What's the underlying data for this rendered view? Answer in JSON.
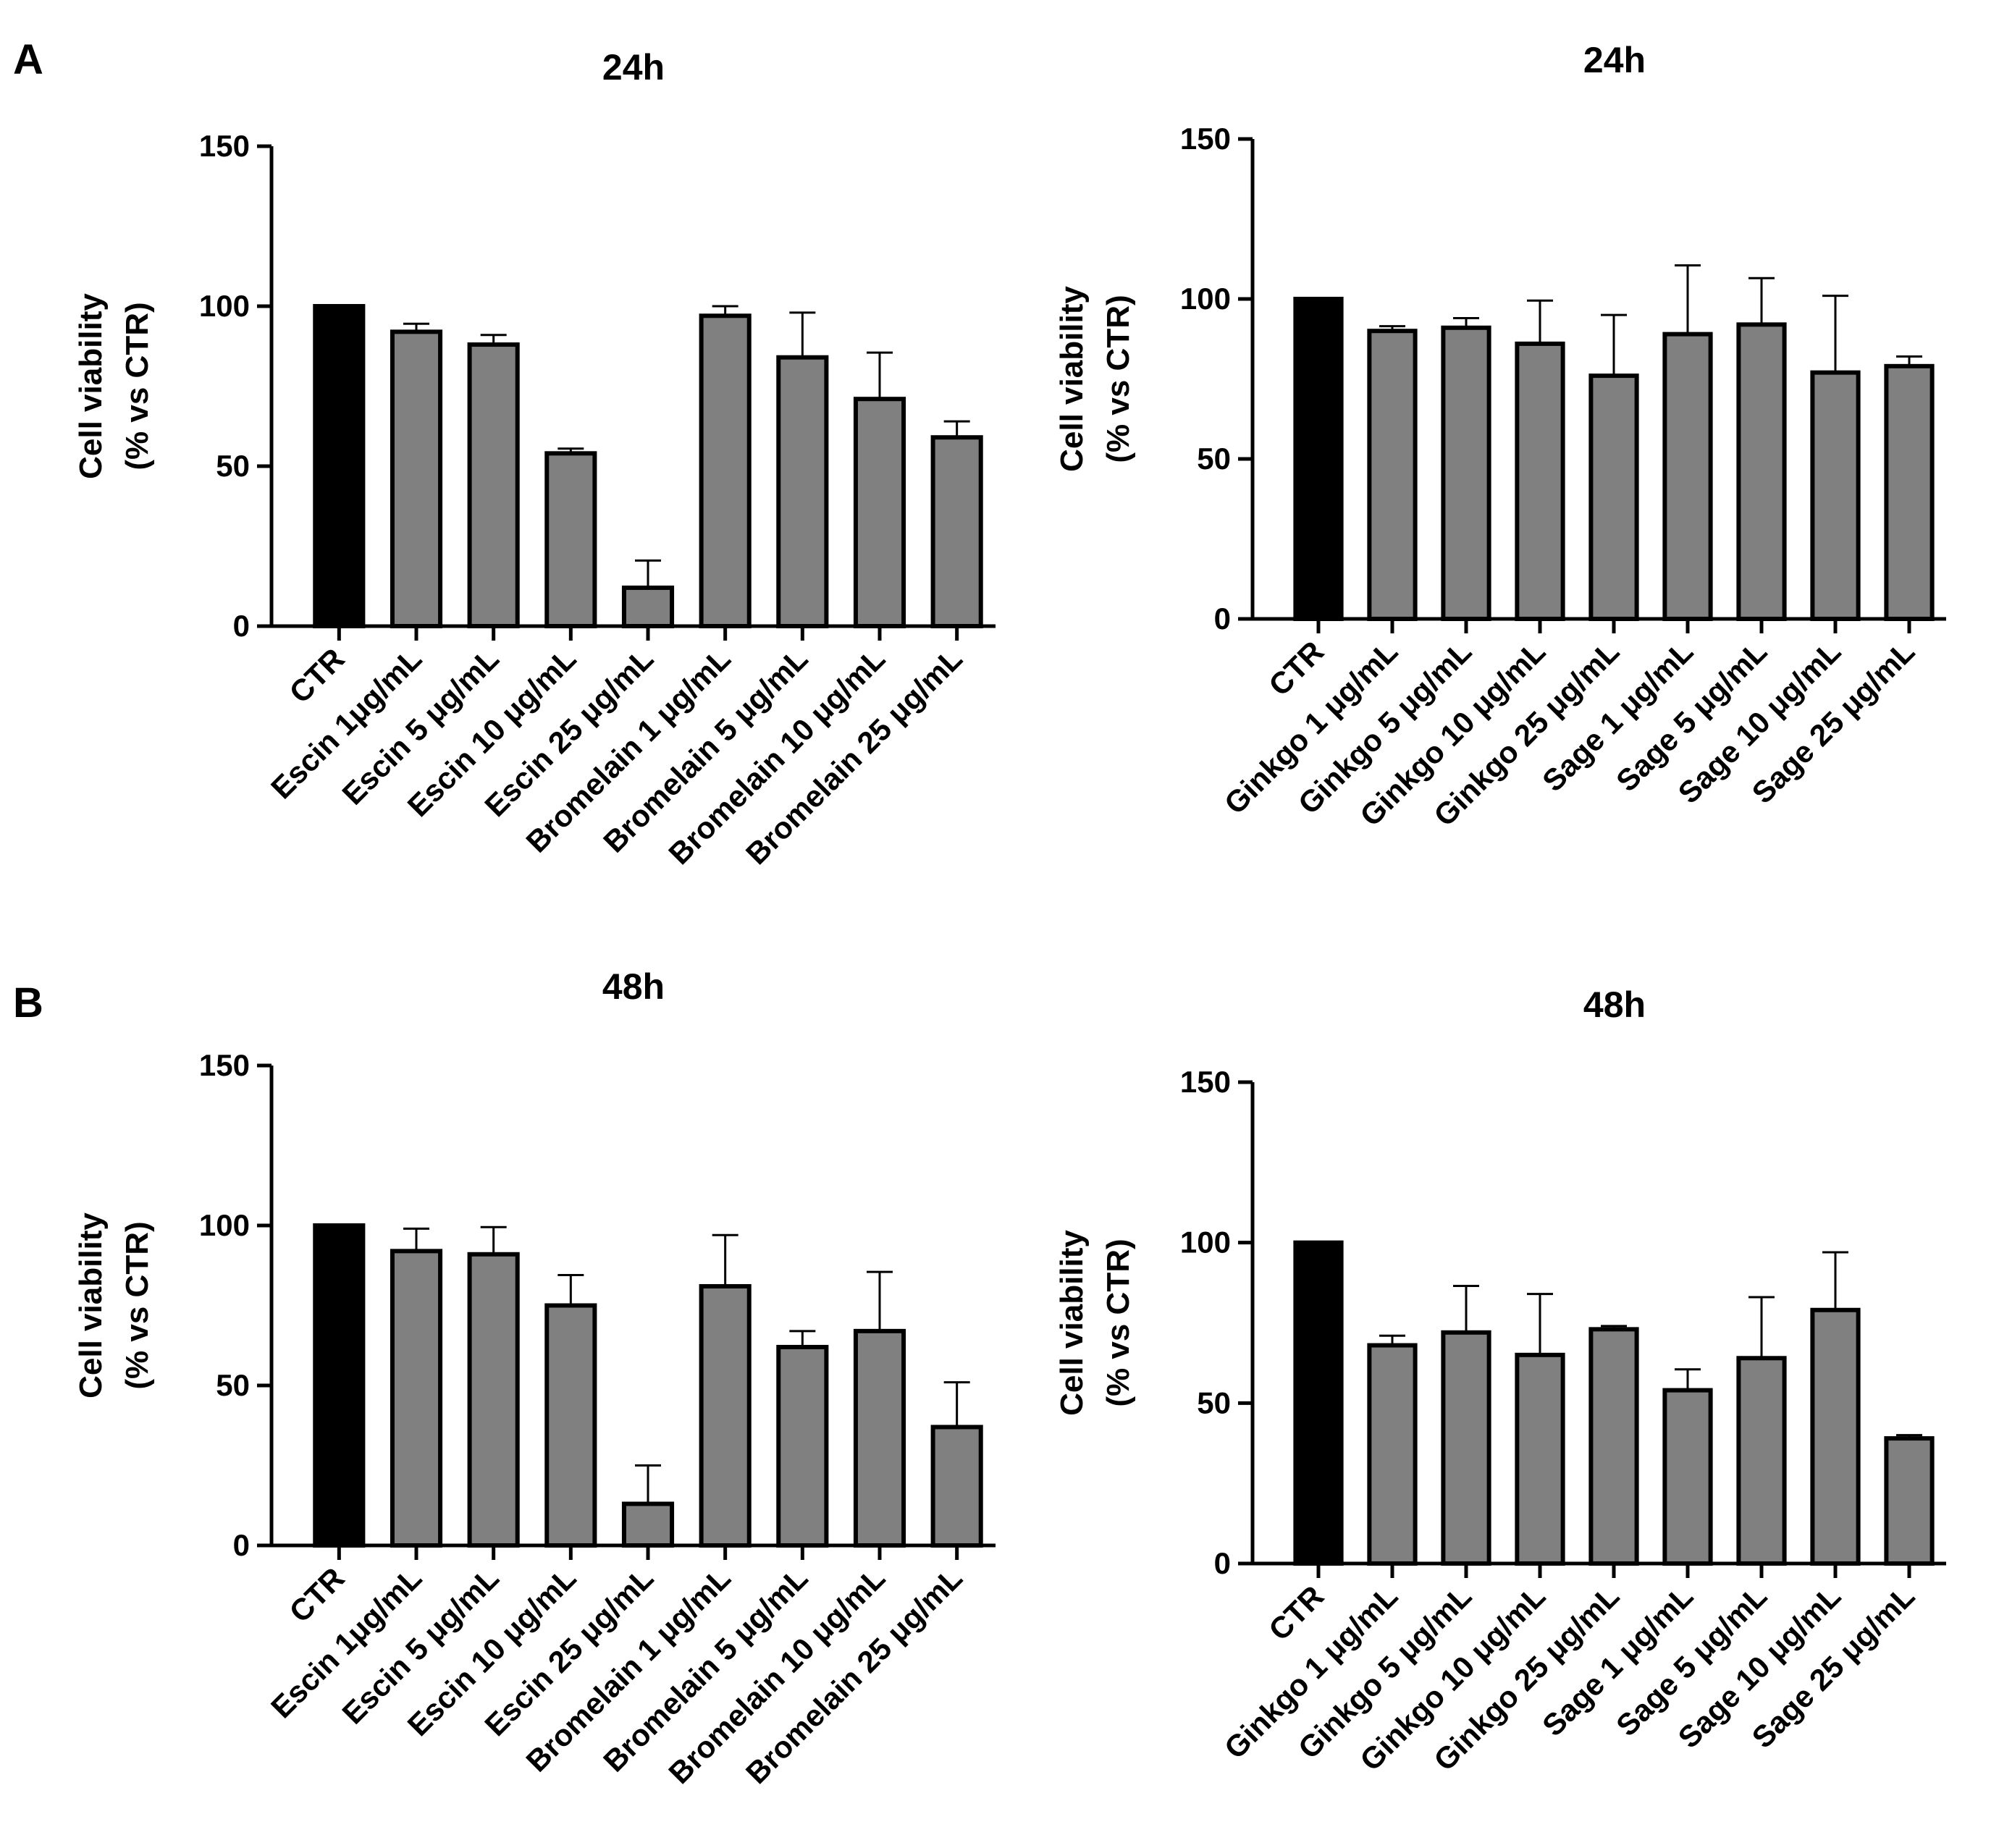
{
  "panels": [
    {
      "label": "A"
    },
    {
      "label": "B"
    }
  ],
  "colors": {
    "control": "#000000",
    "treatment": "#808080",
    "axis": "#000000"
  },
  "chart_data": [
    {
      "type": "bar",
      "title": "24h",
      "panel": "A",
      "ylabel_line1": "Cell viability",
      "ylabel_line2": "(% vs CTR)",
      "ylim": [
        0,
        150
      ],
      "yticks": [
        0,
        50,
        100,
        150
      ],
      "categories": [
        "CTR",
        "Escin 1μg/mL",
        "Escin 5 μg/mL",
        "Escin 10 μg/mL",
        "Escin 25  μg/mL",
        "Bromelain 1 μg/mL",
        "Bromelain 5 μg/mL",
        "Bromelain 10 μg/mL",
        "Bromelain 25 μg/mL"
      ],
      "values": [
        100,
        92,
        88,
        54,
        12,
        97,
        84,
        71,
        59
      ],
      "errors": [
        0,
        2.5,
        3,
        1.5,
        8.5,
        3,
        14,
        14.5,
        5
      ]
    },
    {
      "type": "bar",
      "title": "24h",
      "panel": "",
      "ylabel_line1": "Cell viability",
      "ylabel_line2": "(% vs CTR)",
      "ylim": [
        0,
        150
      ],
      "yticks": [
        0,
        50,
        100,
        150
      ],
      "categories": [
        "CTR",
        "Ginkgo 1  μg/mL",
        "Ginkgo 5  μg/mL",
        "Ginkgo 10  μg/mL",
        "Ginkgo 25  μg/mL",
        "Sage 1  μg/mL",
        "Sage 5  μg/mL",
        "Sage 10  μg/mL",
        "Sage 25  μg/mL"
      ],
      "values": [
        100,
        90,
        91,
        86,
        76,
        89,
        92,
        77,
        79
      ],
      "errors": [
        0,
        1.5,
        3,
        13.5,
        19,
        21.5,
        14.5,
        24,
        3
      ]
    },
    {
      "type": "bar",
      "title": "48h",
      "panel": "B",
      "ylabel_line1": "Cell viability",
      "ylabel_line2": "(% vs CTR)",
      "ylim": [
        0,
        150
      ],
      "yticks": [
        0,
        50,
        100,
        150
      ],
      "categories": [
        "CTR",
        "Escin 1μg/mL",
        "Escin 5 μg/mL",
        "Escin 10 μg/mL",
        "Escin 25 μg/mL",
        "Bromelain 1 μg/mL",
        "Bromelain 5 μg/mL",
        "Bromelain 10 μg/mL",
        "Bromelain 25 μg/mL"
      ],
      "values": [
        100,
        92,
        91,
        75,
        13,
        81,
        62,
        67,
        37
      ],
      "errors": [
        0,
        7,
        8.5,
        9.5,
        12,
        16,
        5,
        18.5,
        14
      ]
    },
    {
      "type": "bar",
      "title": "48h",
      "panel": "",
      "ylabel_line1": "Cell viability",
      "ylabel_line2": "(% vs CTR)",
      "ylim": [
        0,
        150
      ],
      "yticks": [
        0,
        50,
        100,
        150
      ],
      "categories": [
        "CTR",
        "Ginkgo 1 μg/mL",
        "Ginkgo 5 μg/mL",
        "Ginkgo 10 μg/mL",
        "Ginkgo 25 μg/mL",
        "Sage 1 μg/mL",
        "Sage 5 μg/mL",
        "Sage 10 μg/mL",
        "Sage 25 μg/mL"
      ],
      "values": [
        100,
        68,
        72,
        65,
        73,
        54,
        64,
        79,
        39
      ],
      "errors": [
        0,
        3,
        14.5,
        19,
        1,
        6.5,
        19,
        18,
        1
      ]
    }
  ]
}
